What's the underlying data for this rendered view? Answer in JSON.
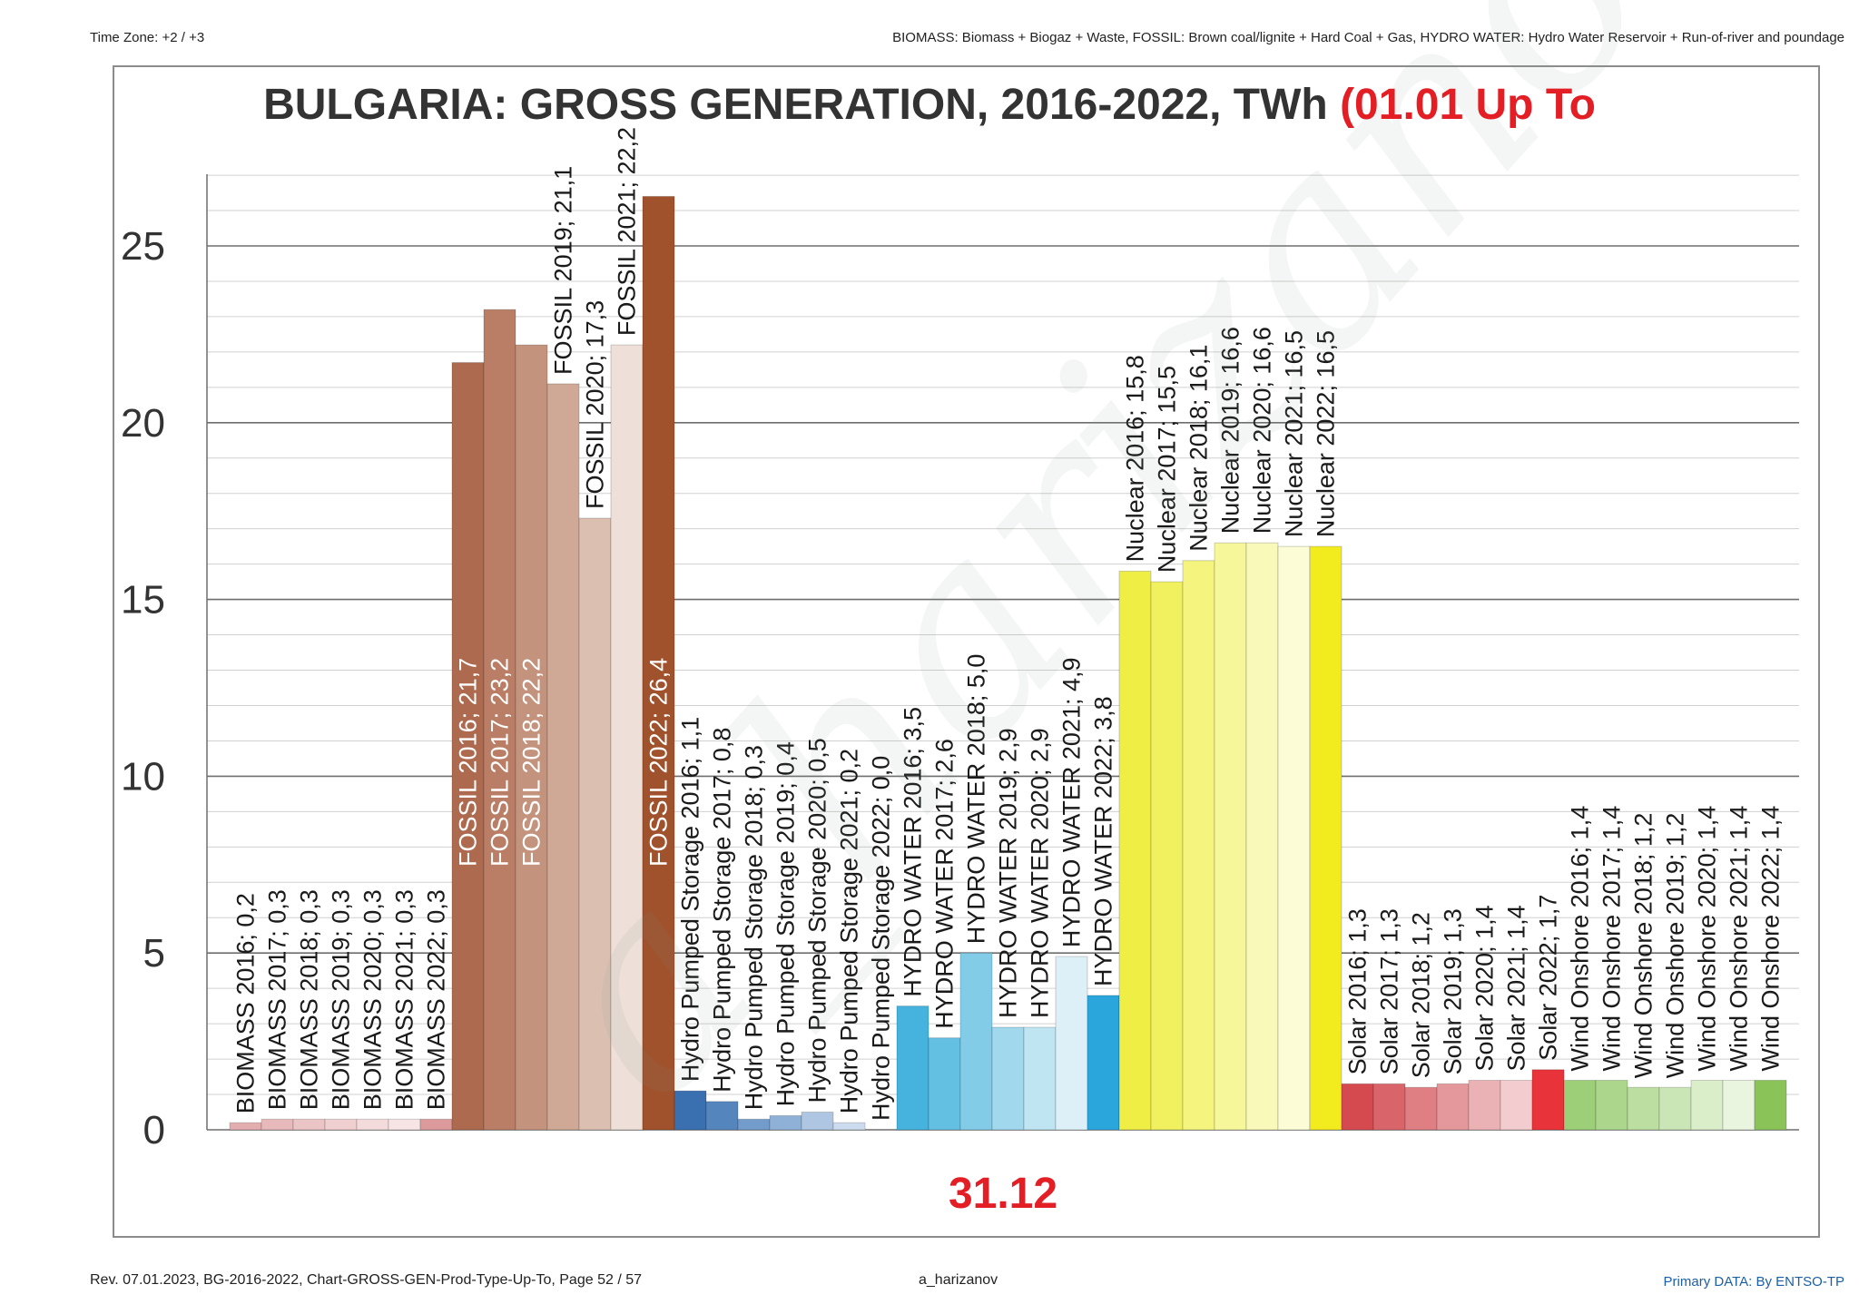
{
  "header": {
    "timezone": "Time Zone: +2 / +3",
    "legend_note": "BIOMASS: Biomass + Biogaz + Waste, FOSSIL: Brown coal/lignite + Hard Coal + Gas, HYDRO WATER:  Hydro  Water Reservoir  + Run-of-river and poundage"
  },
  "footer": {
    "revision": "Rev. 07.01.2023, BG-2016-2022, Chart-GROSS-GEN-Prod-Type-Up-To, Page 52 / 57",
    "author": "a_harizanov",
    "source": "Primary DATA: By ENTSO-TP"
  },
  "watermark": "a_harizanov",
  "chart_data": {
    "type": "bar",
    "title": "BULGARIA: GROSS GENERATION, 2016-2022, TWh",
    "title_highlight": "(01.01 Up To",
    "end_date": "31.12",
    "ylim": [
      0,
      27
    ],
    "yticks": [
      0,
      5,
      10,
      15,
      20,
      25
    ],
    "grid": true,
    "groups": [
      {
        "name": "BIOMASS",
        "bars": [
          {
            "label": "BIOMASS 2016; 0,2",
            "value": 0.2,
            "color": "#e3aeb0"
          },
          {
            "label": "BIOMASS 2017; 0,3",
            "value": 0.3,
            "color": "#e7b9ba"
          },
          {
            "label": "BIOMASS 2018; 0,3",
            "value": 0.3,
            "color": "#ebc4c5"
          },
          {
            "label": "BIOMASS 2019; 0,3",
            "value": 0.3,
            "color": "#efcfd0"
          },
          {
            "label": "BIOMASS 2020; 0,3",
            "value": 0.3,
            "color": "#f3dadb"
          },
          {
            "label": "BIOMASS 2021; 0,3",
            "value": 0.3,
            "color": "#f7e5e6"
          },
          {
            "label": "BIOMASS 2022; 0,3",
            "value": 0.3,
            "color": "#dc9a9c"
          }
        ]
      },
      {
        "name": "FOSSIL",
        "bars": [
          {
            "label": "FOSSIL 2016; 21,7",
            "value": 21.7,
            "color": "#ad6a4f"
          },
          {
            "label": "FOSSIL 2017; 23,2",
            "value": 23.2,
            "color": "#b97e65"
          },
          {
            "label": "FOSSIL 2018; 22,2",
            "value": 22.2,
            "color": "#c4937d"
          },
          {
            "label": "FOSSIL 2019; 21,1",
            "value": 21.1,
            "color": "#cfa996"
          },
          {
            "label": "FOSSIL 2020; 17,3",
            "value": 17.3,
            "color": "#dbc0b2"
          },
          {
            "label": "FOSSIL 2021; 22,2",
            "value": 22.2,
            "color": "#eedfd8"
          },
          {
            "label": "FOSSIL 2022; 26,4",
            "value": 26.4,
            "color": "#a0522d"
          }
        ]
      },
      {
        "name": "Hydro Pumped Storage",
        "bars": [
          {
            "label": "Hydro Pumped Storage 2016; 1,1",
            "value": 1.1,
            "color": "#3a6fb0"
          },
          {
            "label": "Hydro Pumped Storage 2017; 0,8",
            "value": 0.8,
            "color": "#5585bd"
          },
          {
            "label": "Hydro Pumped Storage 2018; 0,3",
            "value": 0.3,
            "color": "#739bcb"
          },
          {
            "label": "Hydro Pumped Storage 2019; 0,4",
            "value": 0.4,
            "color": "#90b1d7"
          },
          {
            "label": "Hydro Pumped Storage 2020; 0,5",
            "value": 0.5,
            "color": "#aec6e2"
          },
          {
            "label": "Hydro Pumped Storage 2021; 0,2",
            "value": 0.2,
            "color": "#ccdcee"
          },
          {
            "label": "Hydro Pumped Storage 2022; 0,0",
            "value": 0.0,
            "color": "#2f63a8"
          }
        ]
      },
      {
        "name": "HYDRO WATER",
        "bars": [
          {
            "label": "HYDRO WATER 2016; 3,5",
            "value": 3.5,
            "color": "#45b3de"
          },
          {
            "label": "HYDRO WATER 2017; 2,6",
            "value": 2.6,
            "color": "#64c0e3"
          },
          {
            "label": "HYDRO WATER 2018; 5,0",
            "value": 5.0,
            "color": "#82cce8"
          },
          {
            "label": "HYDRO WATER 2019; 2,9",
            "value": 2.9,
            "color": "#a1d8ed"
          },
          {
            "label": "HYDRO WATER 2020; 2,9",
            "value": 2.9,
            "color": "#bfe4f2"
          },
          {
            "label": "HYDRO WATER 2021; 4,9",
            "value": 4.9,
            "color": "#ddf0f8"
          },
          {
            "label": "HYDRO WATER 2022; 3,8",
            "value": 3.8,
            "color": "#2aa6dc"
          }
        ]
      },
      {
        "name": "Nuclear",
        "bars": [
          {
            "label": "Nuclear 2016; 15,8",
            "value": 15.8,
            "color": "#eeee44"
          },
          {
            "label": "Nuclear 2017; 15,5",
            "value": 15.5,
            "color": "#f1f160"
          },
          {
            "label": "Nuclear 2018; 16,1",
            "value": 16.1,
            "color": "#f4f47e"
          },
          {
            "label": "Nuclear 2019; 16,6",
            "value": 16.6,
            "color": "#f6f69b"
          },
          {
            "label": "Nuclear 2020; 16,6",
            "value": 16.6,
            "color": "#f9f9b9"
          },
          {
            "label": "Nuclear 2021; 16,5",
            "value": 16.5,
            "color": "#fcfcd7"
          },
          {
            "label": "Nuclear 2022; 16,5",
            "value": 16.5,
            "color": "#f2ec1e"
          }
        ]
      },
      {
        "name": "Solar",
        "bars": [
          {
            "label": "Solar 2016; 1,3",
            "value": 1.3,
            "color": "#d44a4f"
          },
          {
            "label": "Solar 2017; 1,3",
            "value": 1.3,
            "color": "#d9646a"
          },
          {
            "label": "Solar 2018; 1,2",
            "value": 1.2,
            "color": "#df7e83"
          },
          {
            "label": "Solar 2019; 1,3",
            "value": 1.3,
            "color": "#e5989c"
          },
          {
            "label": "Solar 2020; 1,4",
            "value": 1.4,
            "color": "#ebb2b5"
          },
          {
            "label": "Solar 2021; 1,4",
            "value": 1.4,
            "color": "#f2ccce"
          },
          {
            "label": "Solar 2022; 1,7",
            "value": 1.7,
            "color": "#e8333a"
          }
        ]
      },
      {
        "name": "Wind Onshore",
        "bars": [
          {
            "label": "Wind Onshore 2016; 1,4",
            "value": 1.4,
            "color": "#9dcf78"
          },
          {
            "label": "Wind Onshore 2017; 1,4",
            "value": 1.4,
            "color": "#acd68c"
          },
          {
            "label": "Wind Onshore 2018; 1,2",
            "value": 1.2,
            "color": "#bcdea1"
          },
          {
            "label": "Wind Onshore 2019; 1,2",
            "value": 1.2,
            "color": "#cbe6b6"
          },
          {
            "label": "Wind Onshore 2020; 1,4",
            "value": 1.4,
            "color": "#dbeeca"
          },
          {
            "label": "Wind Onshore 2021; 1,4",
            "value": 1.4,
            "color": "#eaf5df"
          },
          {
            "label": "Wind Onshore 2022; 1,4",
            "value": 1.4,
            "color": "#8ac459"
          }
        ]
      }
    ],
    "label_colors": {
      "FOSSIL 2016; 21,7": "#ffffff",
      "FOSSIL 2017; 23,2": "#ffffff",
      "FOSSIL 2018; 22,2": "#ffffff",
      "FOSSIL 2022; 26,4": "#ffffff"
    }
  }
}
